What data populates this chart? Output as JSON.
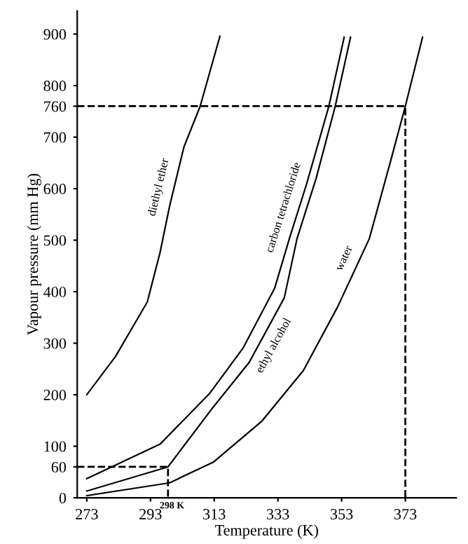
{
  "chart_data": {
    "type": "line",
    "xlabel": "Temperature (K)",
    "ylabel": "Vapour pressure (mm Hg)",
    "xlim": [
      270,
      389
    ],
    "ylim": [
      0,
      945
    ],
    "xticks": [
      273,
      293,
      313,
      333,
      353,
      373
    ],
    "yticks": [
      0,
      60,
      100,
      200,
      300,
      400,
      500,
      600,
      700,
      760,
      800,
      900
    ],
    "grid": false,
    "legend": false,
    "marker": "none",
    "line_style": "solid",
    "series": [
      {
        "name": "diethyl ether",
        "color": "#000000",
        "x": [
          273,
          282,
          292,
          296,
          299,
          303.5,
          308.6,
          314.8
        ],
        "values": [
          200,
          274,
          380,
          476,
          566,
          681,
          760,
          896
        ]
      },
      {
        "name": "carbon tetrachloride",
        "color": "#000000",
        "x": [
          273,
          296,
          311.5,
          322,
          332,
          336.6,
          342,
          349,
          353.8
        ],
        "values": [
          37,
          104,
          202,
          290,
          407,
          503,
          609,
          760,
          894
        ]
      },
      {
        "name": "ethyl alcohol",
        "color": "#000000",
        "x": [
          273,
          298.5,
          312.7,
          324,
          335,
          339,
          345,
          351,
          355.8
        ],
        "values": [
          13,
          60,
          176,
          263,
          388,
          503,
          620,
          760,
          894
        ]
      },
      {
        "name": "water",
        "color": "#000000",
        "x": [
          273,
          299,
          312.7,
          328,
          341,
          351.7,
          361.7,
          368.4,
          373,
          378.4
        ],
        "values": [
          4,
          29,
          69,
          149,
          247,
          370,
          503,
          654,
          760,
          894
        ]
      },
      {
        "color": "#000000",
        "line_style": "dashed",
        "x": [
          270,
          373,
          373
        ],
        "values": [
          760,
          760,
          0
        ]
      },
      {
        "color": "#000000",
        "line_style": "dashed",
        "x": [
          270,
          298.5,
          298.5
        ],
        "values": [
          60,
          60,
          0
        ]
      }
    ],
    "annotations": [
      "298 K"
    ]
  }
}
